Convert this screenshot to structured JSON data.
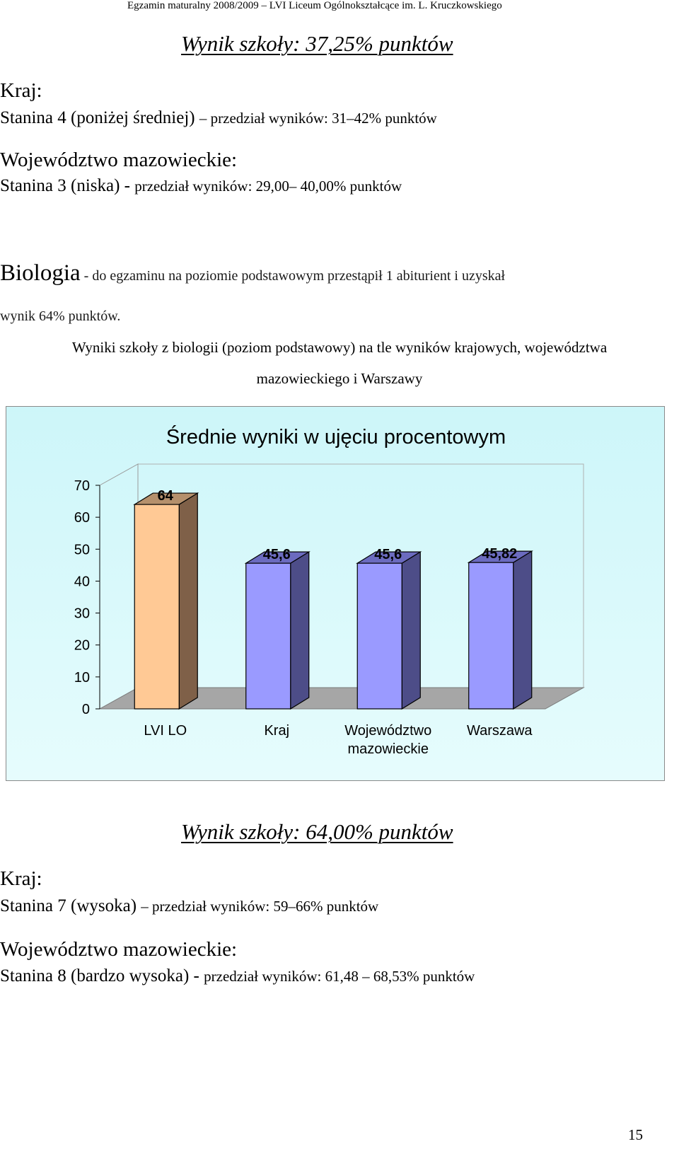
{
  "header": {
    "text": "Egzamin maturalny 2008/2009 – LVI Liceum Ogólnokształcące im. L. Kruczkowskiego"
  },
  "section1": {
    "result": "Wynik szkoły:  37,25% punktów",
    "country_label": "Kraj:",
    "country_stanine": "Stanina 4 (poniżej średniej)",
    "country_range": "– przedział wyników: 31–42% punktów",
    "voivodeship_label": "Województwo mazowieckie:",
    "voivodeship_stanine": "Stanina 3 (niska) -",
    "voivodeship_range": "przedział wyników: 29,00– 40,00% punktów"
  },
  "biology": {
    "subject": "Biologia",
    "line1": " - do egzaminu na poziomie podstawowym przestąpił 1 abiturient i uzyskał",
    "line2": "wynik 64% punktów."
  },
  "caption": {
    "line1": "Wyniki szkoły z biologii (poziom podstawowy) na tle wyników krajowych, województwa",
    "line2": "mazowieckiego i Warszawy"
  },
  "chart_data": {
    "type": "bar",
    "title": "Średnie wyniki w ujęciu procentowym",
    "categories": [
      "LVI LO",
      "Kraj",
      "Województwo mazowieckie",
      "Warszawa"
    ],
    "category_lines": [
      [
        "LVI LO"
      ],
      [
        "Kraj"
      ],
      [
        "Województwo",
        "mazowieckie"
      ],
      [
        "Warszawa"
      ]
    ],
    "values": [
      64,
      45.6,
      45.6,
      45.82
    ],
    "value_labels": [
      "64",
      "45,6",
      "45,6",
      "45,82"
    ],
    "ylim": [
      0,
      70
    ],
    "yticks": [
      0,
      10,
      20,
      30,
      40,
      50,
      60,
      70
    ],
    "xlabel": "",
    "ylabel": "",
    "grid": false,
    "three_d": true,
    "colors": {
      "bar_highlight": "#ffc995",
      "bar_highlight_side": "#7f6048",
      "bar_highlight_top": "#b5906c",
      "bar_default": "#9a9aff",
      "bar_default_side": "#4d4d88",
      "bar_default_top": "#6b6bbf",
      "floor": "#a6a6a6"
    }
  },
  "section2": {
    "result": "Wynik szkoły:  64,00% punktów",
    "country_label": "Kraj:",
    "country_stanine": "Stanina 7 (wysoka)",
    "country_range": "– przedział wyników: 59–66% punktów",
    "voivodeship_label": "Województwo mazowieckie:",
    "voivodeship_stanine": "Stanina 8 (bardzo wysoka) -",
    "voivodeship_range": "przedział wyników: 61,48 – 68,53% punktów"
  },
  "page_number": "15"
}
